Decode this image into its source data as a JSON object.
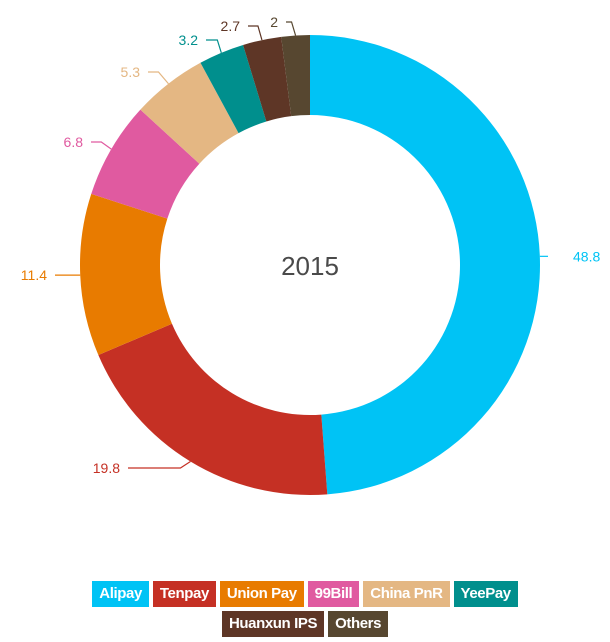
{
  "chart_data": {
    "type": "pie",
    "variant": "donut",
    "title": "2015",
    "categories": [
      "Alipay",
      "Tenpay",
      "Union Pay",
      "99Bill",
      "China PnR",
      "YeePay",
      "Huanxun IPS",
      "Others"
    ],
    "values": [
      48.8,
      19.8,
      11.4,
      6.8,
      5.3,
      3.2,
      2.7,
      2
    ],
    "colors": [
      "#00c3f5",
      "#c53024",
      "#e87b00",
      "#e05aa0",
      "#e4b783",
      "#008f8d",
      "#5e3626",
      "#574730"
    ],
    "data_labels": [
      "48.8",
      "19.8",
      "11.4",
      "6.8",
      "5.3",
      "3.2",
      "2.7",
      "2"
    ],
    "legend_position": "bottom",
    "start_angle_deg": 0,
    "direction": "clockwise"
  },
  "center_label": "2015",
  "legend": {
    "row1": [
      {
        "label": "Alipay",
        "color": "#00c3f5"
      },
      {
        "label": "Tenpay",
        "color": "#c53024"
      },
      {
        "label": "Union Pay",
        "color": "#e87b00"
      },
      {
        "label": "99Bill",
        "color": "#e05aa0"
      },
      {
        "label": "China PnR",
        "color": "#e4b783"
      },
      {
        "label": "YeePay",
        "color": "#008f8d"
      }
    ],
    "row2": [
      {
        "label": "Huanxun IPS",
        "color": "#5e3626"
      },
      {
        "label": "Others",
        "color": "#574730"
      }
    ]
  }
}
